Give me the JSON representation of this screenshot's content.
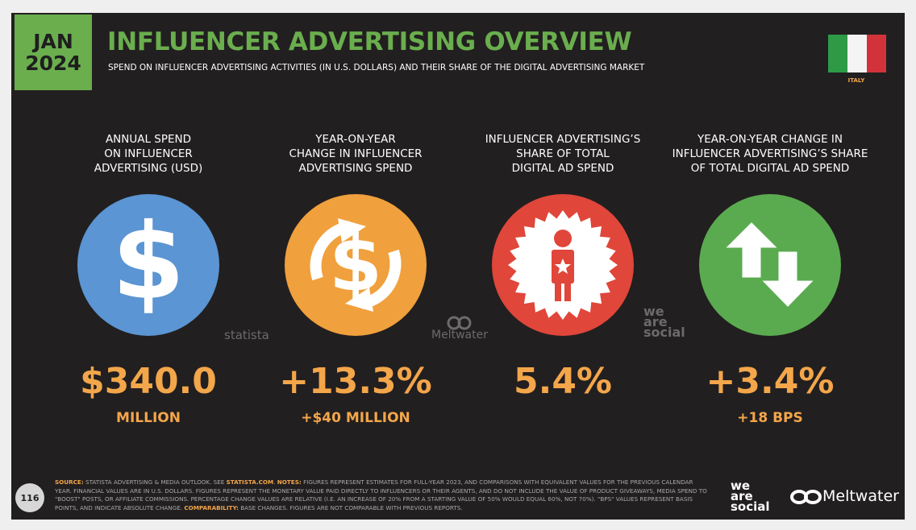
{
  "badge": {
    "month": "JAN",
    "year": "2024"
  },
  "header": {
    "title": "INFLUENCER ADVERTISING OVERVIEW",
    "subtitle": "SPEND ON INFLUENCER ADVERTISING ACTIVITIES (IN U.S. DOLLARS) AND THEIR SHARE OF THE DIGITAL ADVERTISING MARKET",
    "country": "ITALY"
  },
  "columns": [
    {
      "label": [
        "ANNUAL SPEND",
        "ON INFLUENCER",
        "ADVERTISING (USD)"
      ],
      "value": "$340.0",
      "sub": "MILLION"
    },
    {
      "label": [
        "YEAR-ON-YEAR",
        "CHANGE IN INFLUENCER",
        "ADVERTISING SPEND"
      ],
      "value": "+13.3%",
      "sub": "+$40 MILLION"
    },
    {
      "label": [
        "INFLUENCER ADVERTISING’S",
        "SHARE OF TOTAL",
        "DIGITAL AD SPEND"
      ],
      "value": "5.4%",
      "sub": null
    },
    {
      "label": [
        "YEAR-ON-YEAR CHANGE IN",
        "INFLUENCER ADVERTISING’S SHARE",
        "OF TOTAL DIGITAL AD SPEND"
      ],
      "value": "+3.4%",
      "sub": "+18 BPS"
    }
  ],
  "watermarks": {
    "statista": "statista",
    "meltwater": "Meltwater",
    "wearesocial": [
      "we",
      "are",
      "social"
    ]
  },
  "footer": {
    "page": "116",
    "source_label": "SOURCE:",
    "source_text": " STATISTA ADVERTISING & MEDIA OUTLOOK. SEE ",
    "link": "STATISTA.COM",
    "notes_label": "NOTES:",
    "notes_text": " FIGURES REPRESENT ESTIMATES FOR FULL-YEAR 2023, AND COMPARISONS WITH EQUIVALENT VALUES FOR THE PREVIOUS CALENDAR YEAR. FINANCIAL VALUES ARE IN U.S. DOLLARS. FIGURES REPRESENT THE MONETARY VALUE PAID DIRECTLY TO INFLUENCERS OR THEIR AGENTS, AND DO NOT INCLUDE THE VALUE OF PRODUCT GIVEAWAYS, MEDIA SPEND TO \"BOOST\" POSTS, OR AFFILIATE COMMISSIONS. PERCENTAGE CHANGE VALUES ARE RELATIVE (I.E. AN INCREASE OF 20% FROM A STARTING VALUE OF 50% WOULD EQUAL 60%, NOT 70%). \"BPS\" VALUES REPRESENT BASIS POINTS, AND INDICATE ABSOLUTE CHANGE. ",
    "comparability_label": "COMPARABILITY:",
    "comparability_text": " BASE CHANGES. FIGURES ARE NOT COMPARABLE WITH PREVIOUS REPORTS.",
    "logo_wearesocial": [
      "we",
      "are",
      "social"
    ],
    "logo_meltwater": "Meltwater"
  }
}
